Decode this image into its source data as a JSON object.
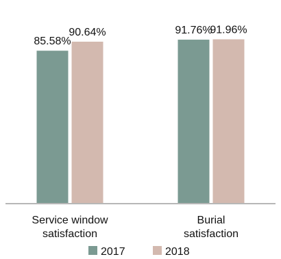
{
  "chart_data": {
    "type": "bar",
    "categories": [
      [
        "Service window",
        "satisfaction"
      ],
      [
        "Burial",
        "satisfaction"
      ]
    ],
    "series": [
      {
        "name": "2017",
        "color": "#7b9a92",
        "values": [
          85.58,
          91.76
        ],
        "labels": [
          "85.58%",
          "91.76%"
        ]
      },
      {
        "name": "2018",
        "color": "#d3b9af",
        "values": [
          90.64,
          91.96
        ],
        "labels": [
          "90.64%",
          "91.96%"
        ]
      }
    ],
    "ylim": [
      0,
      100
    ],
    "grid": false,
    "legend": "bottom-center",
    "axis_color": "#b7b7b7"
  }
}
